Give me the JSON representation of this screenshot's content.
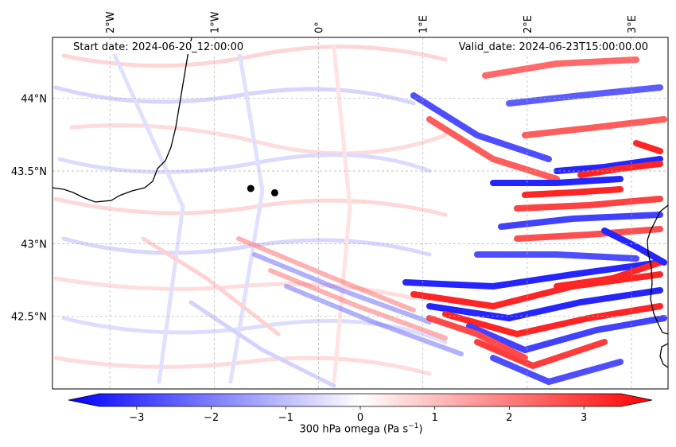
{
  "map": {
    "start_date": "Start date: 2024-06-20_12:00:00",
    "valid_date": "Valid_date: 2024-06-23T15:00:00.00",
    "lon_ticks": [
      "2°W",
      "1°W",
      "0°",
      "1°E",
      "2°E",
      "3°E"
    ],
    "lat_ticks": [
      "44°N",
      "43.5°N",
      "43°N",
      "42.5°N"
    ],
    "extent": {
      "lon_min": -2.55,
      "lon_max": 3.35,
      "lat_min": 42.0,
      "lat_max": 44.42
    },
    "field": "300 hPa omega",
    "markers": [
      {
        "name": "marker-1",
        "lon": -0.65,
        "lat": 43.38
      },
      {
        "name": "marker-2",
        "lon": -0.42,
        "lat": 43.35
      }
    ]
  },
  "colorbar": {
    "title_prefix": "300 hPa omega (Pa s",
    "title_exp": "−1",
    "title_suffix": ")",
    "min": -3.5,
    "max": 3.5,
    "ticks": [
      "−3",
      "−2",
      "−1",
      "0",
      "1",
      "2",
      "3"
    ],
    "tick_values": [
      -3,
      -2,
      -1,
      0,
      1,
      2,
      3
    ],
    "color_low": "#0000ff",
    "color_mid": "#ffffff",
    "color_high": "#ff0000"
  },
  "colors": {
    "coastline": "#000000",
    "grid": "#b0b0b0",
    "marker": "#000000"
  }
}
